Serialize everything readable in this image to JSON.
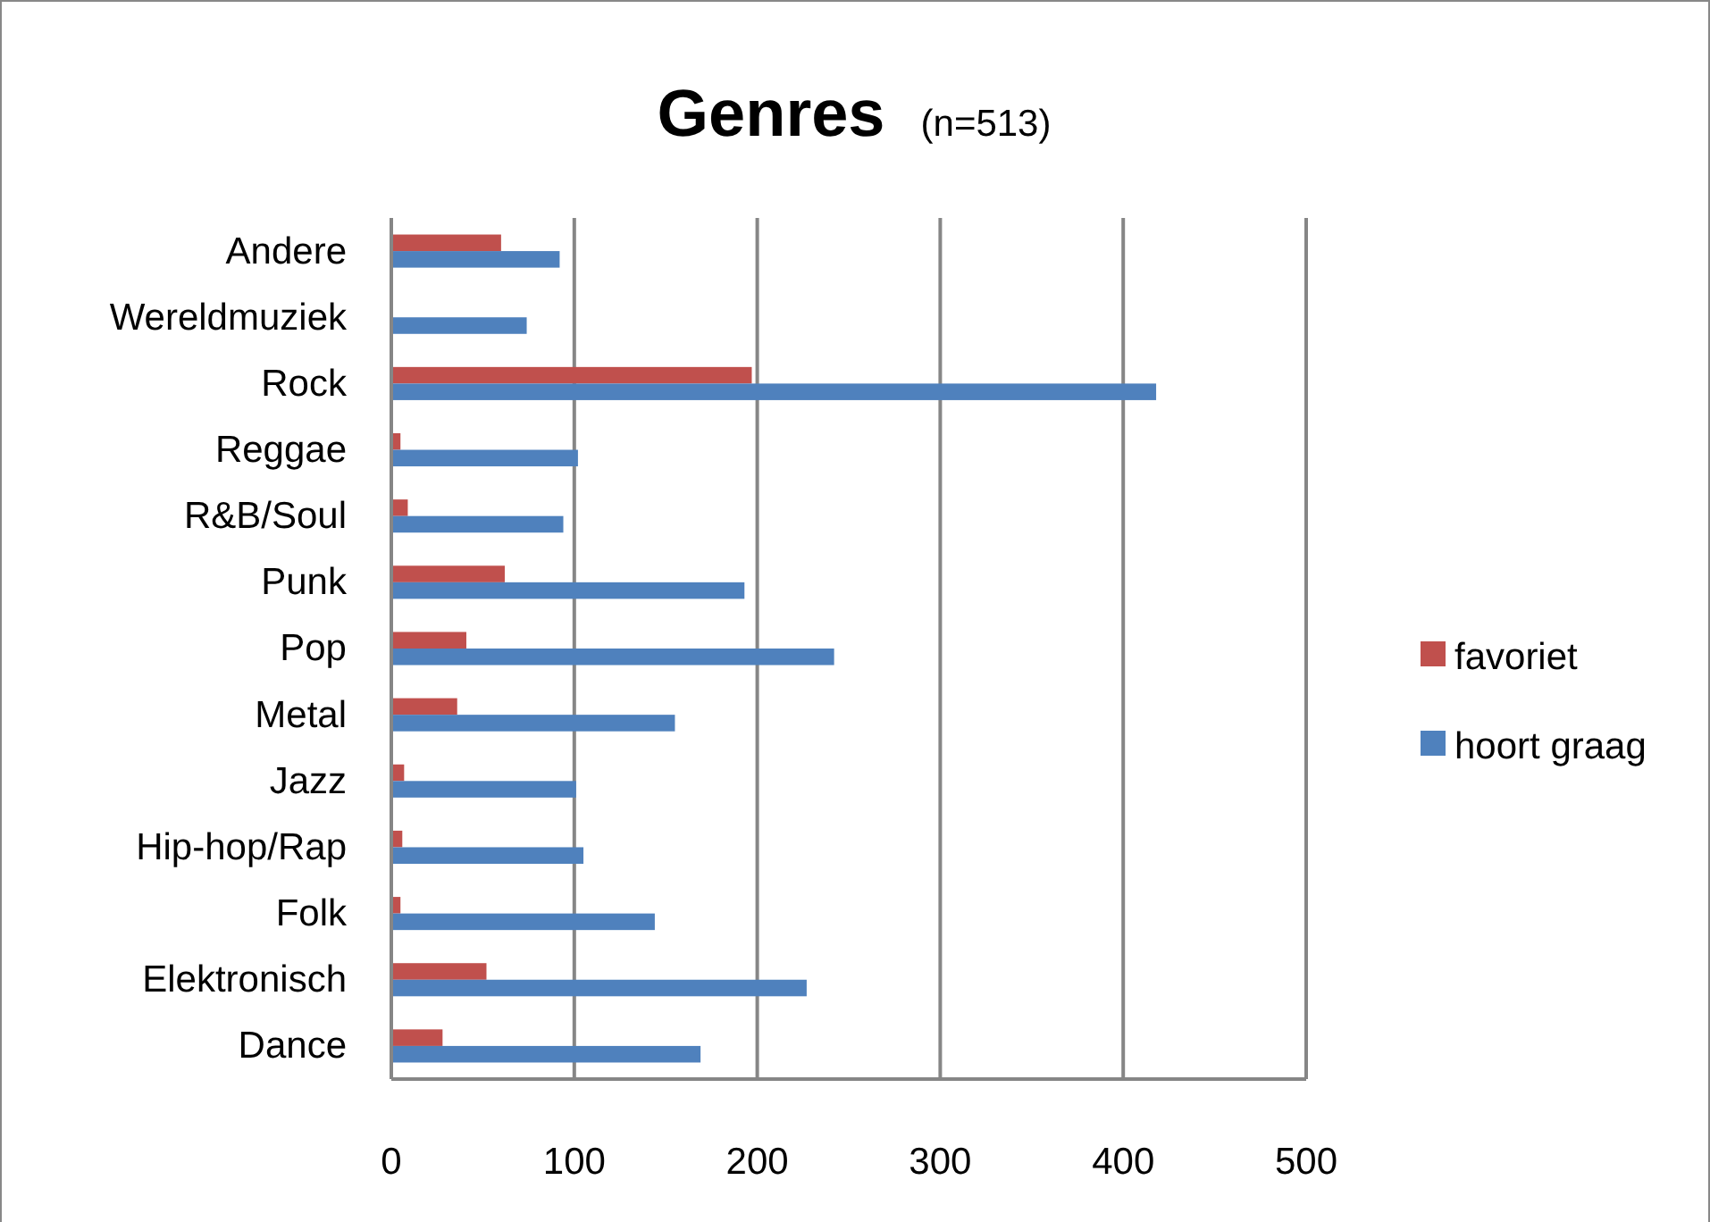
{
  "chart_data": {
    "type": "bar",
    "orientation": "horizontal",
    "title": "Genres",
    "subtitle": "(n=513)",
    "categories": [
      "Andere",
      "Wereldmuziek",
      "Rock",
      "Reggae",
      "R&B/Soul",
      "Punk",
      "Pop",
      "Metal",
      "Jazz",
      "Hip-hop/Rap",
      "Folk",
      "Elektronisch",
      "Dance"
    ],
    "series": [
      {
        "name": "favoriet",
        "color": "#c0504d",
        "values": [
          60,
          null,
          197,
          5,
          9,
          62,
          41,
          36,
          7,
          6,
          5,
          52,
          28
        ]
      },
      {
        "name": "hoort graag",
        "color": "#4f81bd",
        "values": [
          92,
          74,
          418,
          102,
          94,
          193,
          242,
          155,
          101,
          105,
          144,
          227,
          169
        ]
      }
    ],
    "xlim": [
      0,
      500
    ],
    "xticks": [
      0,
      100,
      200,
      300,
      400,
      500
    ],
    "grid": "x",
    "legend": "right"
  }
}
